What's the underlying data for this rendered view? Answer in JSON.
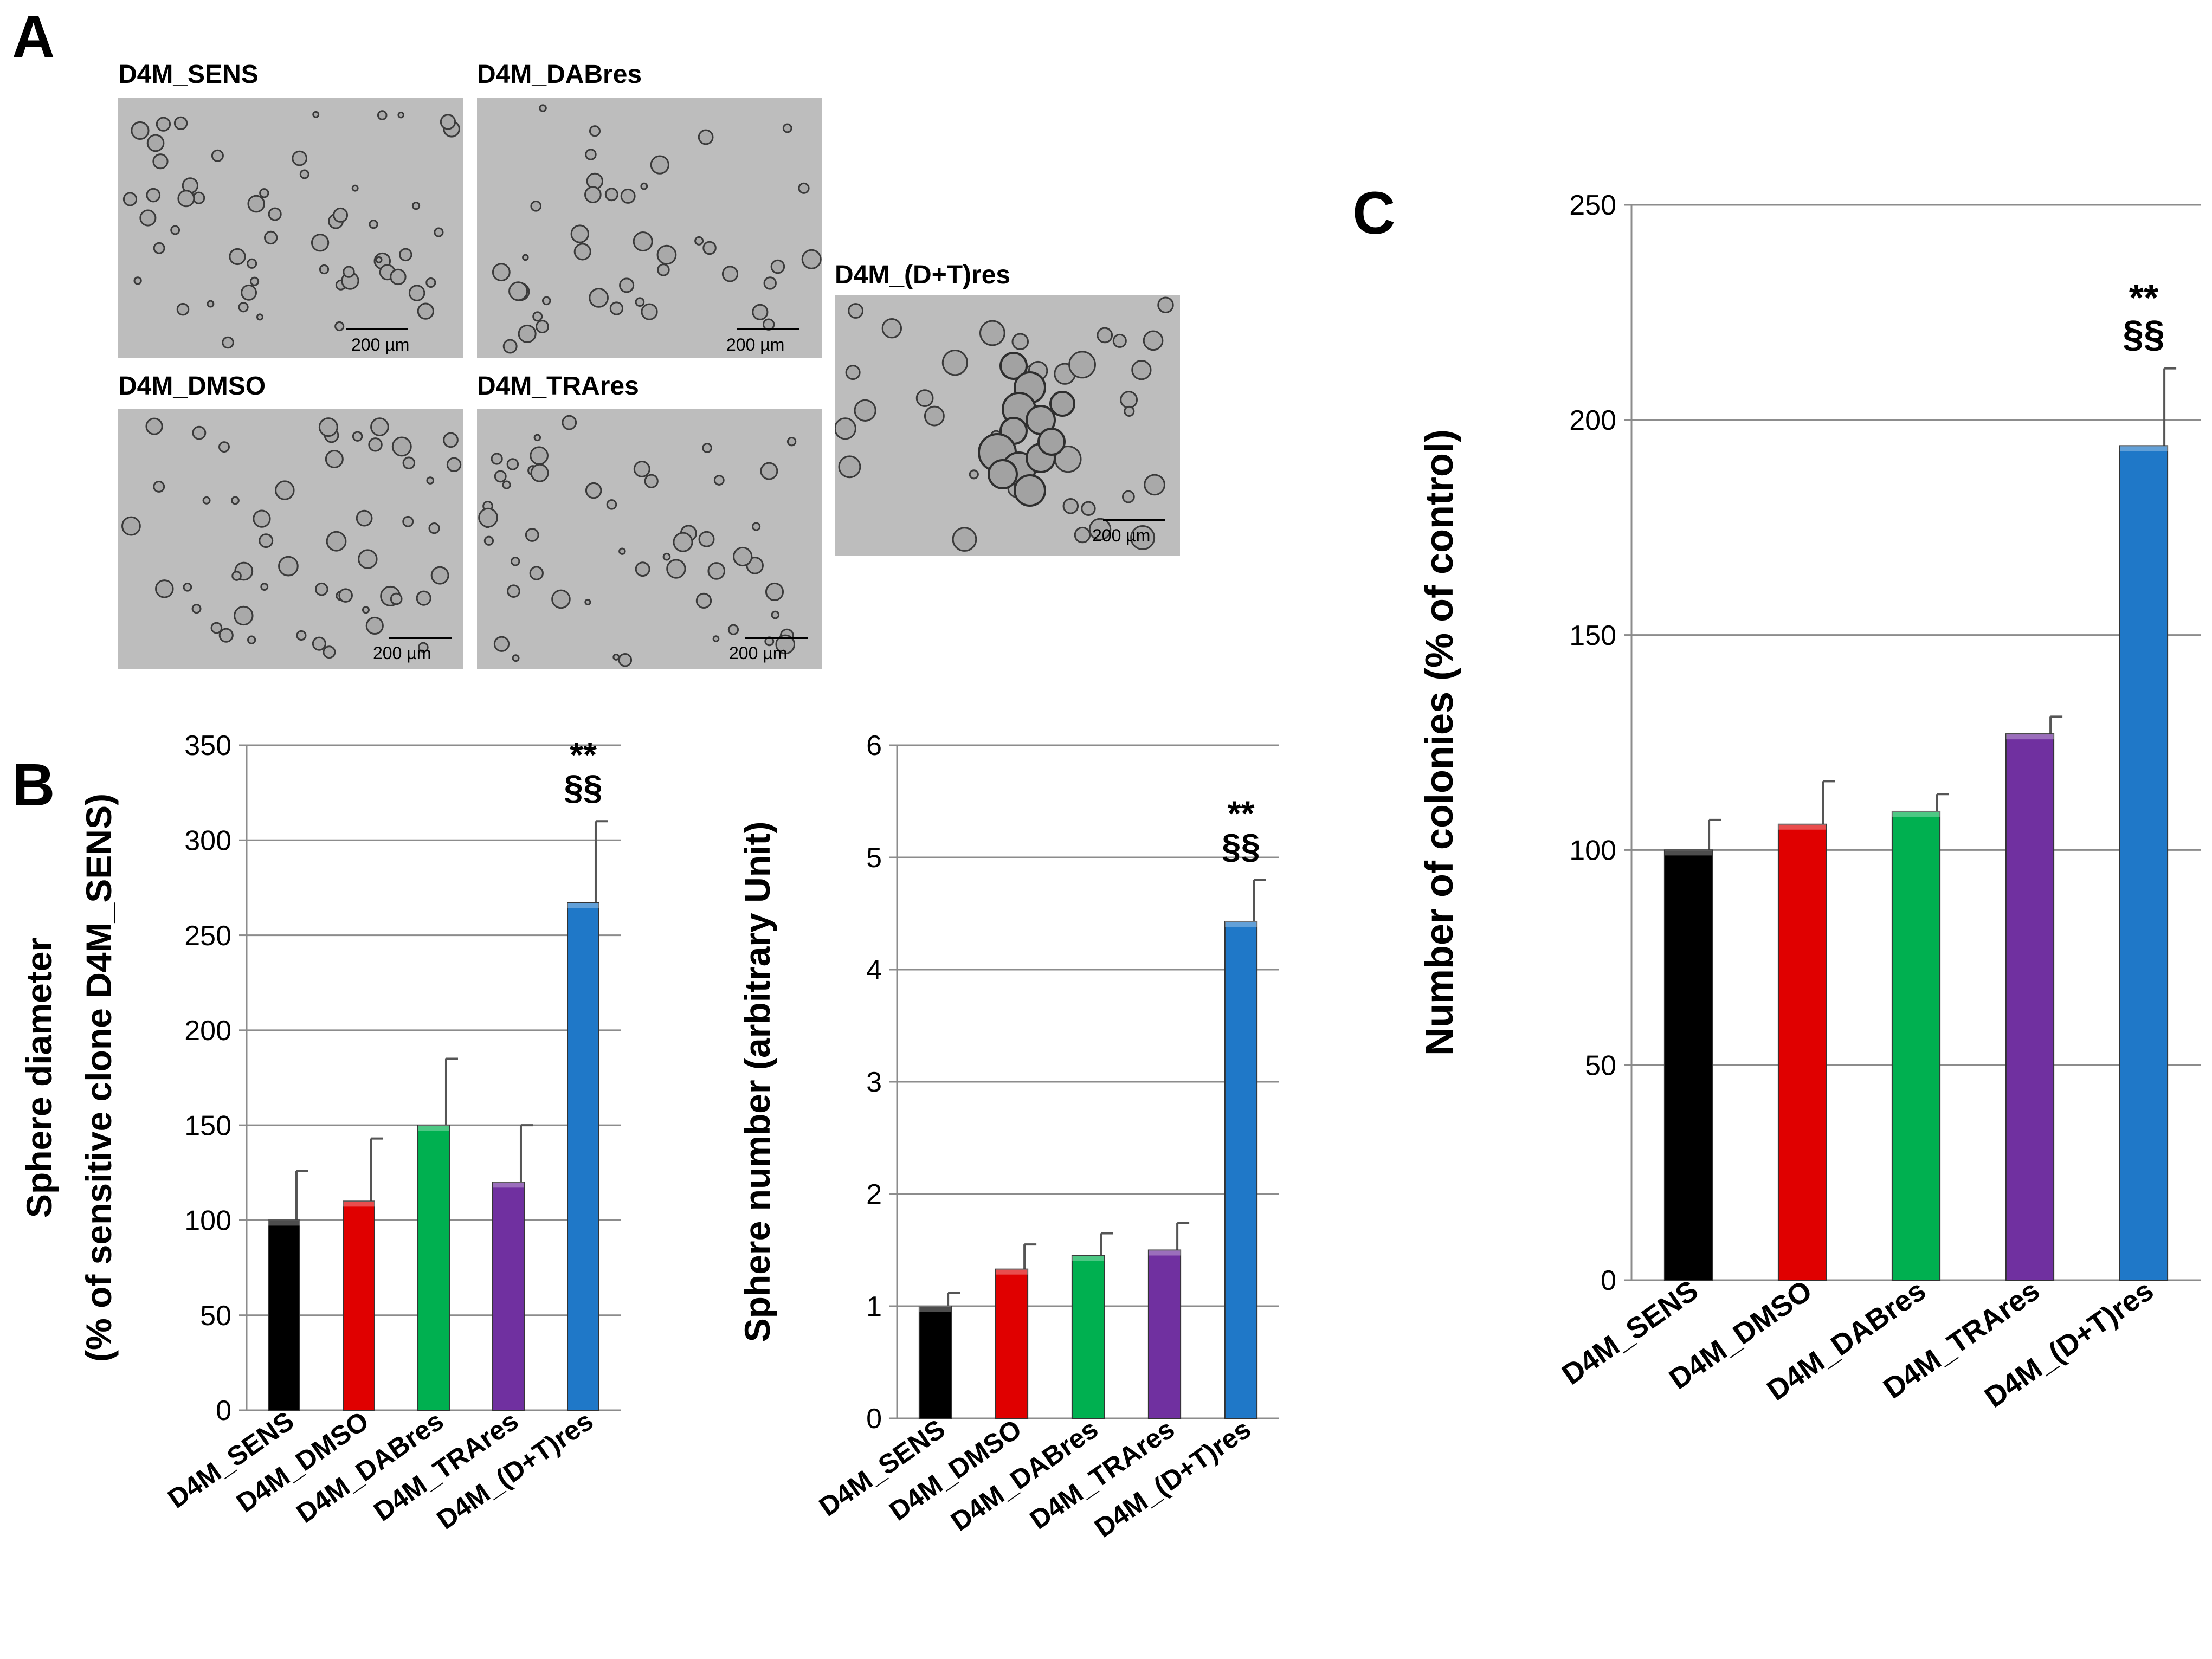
{
  "panels": {
    "a": "A",
    "b": "B",
    "c": "C"
  },
  "micrographs": [
    {
      "label": "D4M_SENS",
      "scale": "200 µm"
    },
    {
      "label": "D4M_DABres",
      "scale": "200 µm"
    },
    {
      "label": "D4M_(D+T)res",
      "scale": "200 µm"
    },
    {
      "label": "D4M_DMSO",
      "scale": "200 µm"
    },
    {
      "label": "D4M_TRAres",
      "scale": "200 µm"
    }
  ],
  "colors": [
    "#000000",
    "#e00000",
    "#00b050",
    "#7030a0",
    "#1f78c8"
  ],
  "chart_data": [
    {
      "type": "bar",
      "panel": "B",
      "categories": [
        "D4M_SENS",
        "D4M_DMSO",
        "D4M_DABres",
        "D4M_TRAres",
        "D4M_(D+T)res"
      ],
      "values": [
        100,
        110,
        150,
        120,
        267
      ],
      "errors": [
        26,
        33,
        35,
        30,
        43
      ],
      "ylabel_line1": "Sphere diameter",
      "ylabel_line2": "(% of sensitive clone D4M_SENS)",
      "ylim": [
        0,
        350
      ],
      "yticks": [
        0,
        50,
        100,
        150,
        200,
        250,
        300,
        350
      ],
      "grid": true,
      "annotation": {
        "index": 4,
        "lines": [
          "**",
          "§§"
        ]
      }
    },
    {
      "type": "bar",
      "panel": "B",
      "categories": [
        "D4M_SENS",
        "D4M_DMSO",
        "D4M_DABres",
        "D4M_TRAres",
        "D4M_(D+T)res"
      ],
      "values": [
        1.0,
        1.33,
        1.45,
        1.5,
        4.43
      ],
      "errors": [
        0.12,
        0.22,
        0.2,
        0.24,
        0.37
      ],
      "ylabel_line1": "Sphere number  (arbitrary Unit)",
      "ylabel_line2": "",
      "ylim": [
        0,
        6
      ],
      "yticks": [
        0,
        1,
        2,
        3,
        4,
        5,
        6
      ],
      "grid": true,
      "annotation": {
        "index": 4,
        "lines": [
          "**",
          "§§"
        ]
      }
    },
    {
      "type": "bar",
      "panel": "C",
      "categories": [
        "D4M_SENS",
        "D4M_DMSO",
        "D4M_DABres",
        "D4M_TRAres",
        "D4M_(D+T)res"
      ],
      "values": [
        100,
        106,
        109,
        127,
        194
      ],
      "errors": [
        7,
        10,
        4,
        4,
        18
      ],
      "ylabel_line1": "Number of colonies (% of control)",
      "ylabel_line2": "",
      "ylim": [
        0,
        250
      ],
      "yticks": [
        0,
        50,
        100,
        150,
        200,
        250
      ],
      "grid": true,
      "annotation": {
        "index": 4,
        "lines": [
          "**",
          "§§"
        ]
      }
    }
  ]
}
